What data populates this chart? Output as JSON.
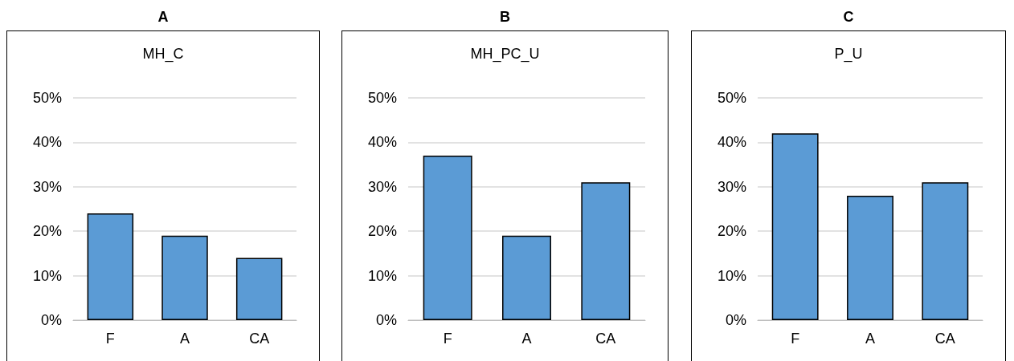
{
  "chart_data": [
    {
      "type": "bar",
      "title": "A",
      "subtitle": "MH_C",
      "categories": [
        "F",
        "A",
        "CA"
      ],
      "values": [
        24,
        19,
        14
      ],
      "color": "#5b9bd5",
      "ylim": [
        0,
        50
      ],
      "yticks": [
        {
          "value": 0,
          "label": "0%"
        },
        {
          "value": 10,
          "label": "10%"
        },
        {
          "value": 20,
          "label": "20%"
        },
        {
          "value": 30,
          "label": "30%"
        },
        {
          "value": 40,
          "label": "40%"
        },
        {
          "value": 50,
          "label": "50%"
        }
      ],
      "grid": "y"
    },
    {
      "type": "bar",
      "title": "B",
      "subtitle": "MH_PC_U",
      "categories": [
        "F",
        "A",
        "CA"
      ],
      "values": [
        37,
        19,
        31
      ],
      "color": "#5b9bd5",
      "ylim": [
        0,
        50
      ],
      "yticks": [
        {
          "value": 0,
          "label": "0%"
        },
        {
          "value": 10,
          "label": "10%"
        },
        {
          "value": 20,
          "label": "20%"
        },
        {
          "value": 30,
          "label": "30%"
        },
        {
          "value": 40,
          "label": "40%"
        },
        {
          "value": 50,
          "label": "50%"
        }
      ],
      "grid": "y"
    },
    {
      "type": "bar",
      "title": "C",
      "subtitle": "P_U",
      "categories": [
        "F",
        "A",
        "CA"
      ],
      "values": [
        42,
        28,
        31
      ],
      "color": "#5b9bd5",
      "ylim": [
        0,
        50
      ],
      "yticks": [
        {
          "value": 0,
          "label": "0%"
        },
        {
          "value": 10,
          "label": "10%"
        },
        {
          "value": 20,
          "label": "20%"
        },
        {
          "value": 30,
          "label": "30%"
        },
        {
          "value": 40,
          "label": "40%"
        },
        {
          "value": 50,
          "label": "50%"
        }
      ],
      "grid": "y"
    }
  ]
}
